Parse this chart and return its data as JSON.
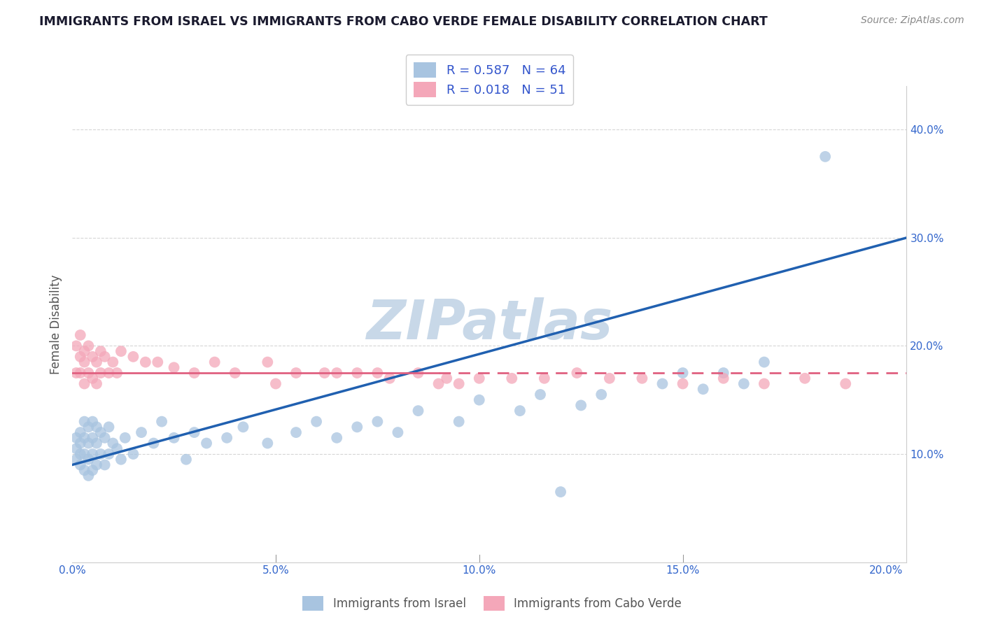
{
  "title": "IMMIGRANTS FROM ISRAEL VS IMMIGRANTS FROM CABO VERDE FEMALE DISABILITY CORRELATION CHART",
  "source": "Source: ZipAtlas.com",
  "ylabel": "Female Disability",
  "xlim": [
    0.0,
    0.205
  ],
  "ylim": [
    0.0,
    0.44
  ],
  "xticks": [
    0.0,
    0.05,
    0.1,
    0.15,
    0.2
  ],
  "xticklabels": [
    "0.0%",
    "5.0%",
    "10.0%",
    "15.0%",
    "20.0%"
  ],
  "yticks": [
    0.1,
    0.2,
    0.3,
    0.4
  ],
  "yticklabels": [
    "10.0%",
    "20.0%",
    "30.0%",
    "40.0%"
  ],
  "israel_R": 0.587,
  "israel_N": 64,
  "caboverde_R": 0.018,
  "caboverde_N": 51,
  "israel_color": "#a8c4e0",
  "caboverde_color": "#f4a7b9",
  "israel_line_color": "#2060b0",
  "caboverde_line_color": "#e06080",
  "legend_text_color": "#3355cc",
  "title_color": "#1a1a2e",
  "watermark": "ZIPatlas",
  "watermark_color": "#c8d8e8",
  "background_color": "#ffffff",
  "israel_x": [
    0.001,
    0.001,
    0.001,
    0.002,
    0.002,
    0.002,
    0.002,
    0.003,
    0.003,
    0.003,
    0.003,
    0.004,
    0.004,
    0.004,
    0.004,
    0.005,
    0.005,
    0.005,
    0.005,
    0.006,
    0.006,
    0.006,
    0.007,
    0.007,
    0.008,
    0.008,
    0.009,
    0.009,
    0.01,
    0.011,
    0.012,
    0.013,
    0.015,
    0.017,
    0.02,
    0.022,
    0.025,
    0.028,
    0.03,
    0.033,
    0.038,
    0.042,
    0.048,
    0.055,
    0.06,
    0.065,
    0.07,
    0.075,
    0.08,
    0.085,
    0.095,
    0.1,
    0.11,
    0.115,
    0.12,
    0.125,
    0.13,
    0.145,
    0.15,
    0.155,
    0.16,
    0.165,
    0.17,
    0.185
  ],
  "israel_y": [
    0.115,
    0.105,
    0.095,
    0.12,
    0.11,
    0.1,
    0.09,
    0.13,
    0.115,
    0.1,
    0.085,
    0.125,
    0.11,
    0.095,
    0.08,
    0.13,
    0.115,
    0.1,
    0.085,
    0.125,
    0.11,
    0.09,
    0.12,
    0.1,
    0.115,
    0.09,
    0.125,
    0.1,
    0.11,
    0.105,
    0.095,
    0.115,
    0.1,
    0.12,
    0.11,
    0.13,
    0.115,
    0.095,
    0.12,
    0.11,
    0.115,
    0.125,
    0.11,
    0.12,
    0.13,
    0.115,
    0.125,
    0.13,
    0.12,
    0.14,
    0.13,
    0.15,
    0.14,
    0.155,
    0.065,
    0.145,
    0.155,
    0.165,
    0.175,
    0.16,
    0.175,
    0.165,
    0.185,
    0.375
  ],
  "caboverde_x": [
    0.001,
    0.001,
    0.002,
    0.002,
    0.002,
    0.003,
    0.003,
    0.003,
    0.004,
    0.004,
    0.005,
    0.005,
    0.006,
    0.006,
    0.007,
    0.007,
    0.008,
    0.009,
    0.01,
    0.011,
    0.012,
    0.015,
    0.018,
    0.021,
    0.025,
    0.03,
    0.035,
    0.04,
    0.048,
    0.055,
    0.062,
    0.07,
    0.078,
    0.085,
    0.092,
    0.1,
    0.108,
    0.116,
    0.124,
    0.132,
    0.14,
    0.15,
    0.16,
    0.17,
    0.18,
    0.19,
    0.05,
    0.065,
    0.075,
    0.09,
    0.095
  ],
  "caboverde_y": [
    0.2,
    0.175,
    0.21,
    0.19,
    0.175,
    0.195,
    0.185,
    0.165,
    0.2,
    0.175,
    0.19,
    0.17,
    0.185,
    0.165,
    0.195,
    0.175,
    0.19,
    0.175,
    0.185,
    0.175,
    0.195,
    0.19,
    0.185,
    0.185,
    0.18,
    0.175,
    0.185,
    0.175,
    0.185,
    0.175,
    0.175,
    0.175,
    0.17,
    0.175,
    0.17,
    0.17,
    0.17,
    0.17,
    0.175,
    0.17,
    0.17,
    0.165,
    0.17,
    0.165,
    0.17,
    0.165,
    0.165,
    0.175,
    0.175,
    0.165,
    0.165
  ],
  "israel_line_y0": 0.09,
  "israel_line_y1": 0.3,
  "caboverde_line_y0": 0.175,
  "caboverde_line_y1": 0.175
}
